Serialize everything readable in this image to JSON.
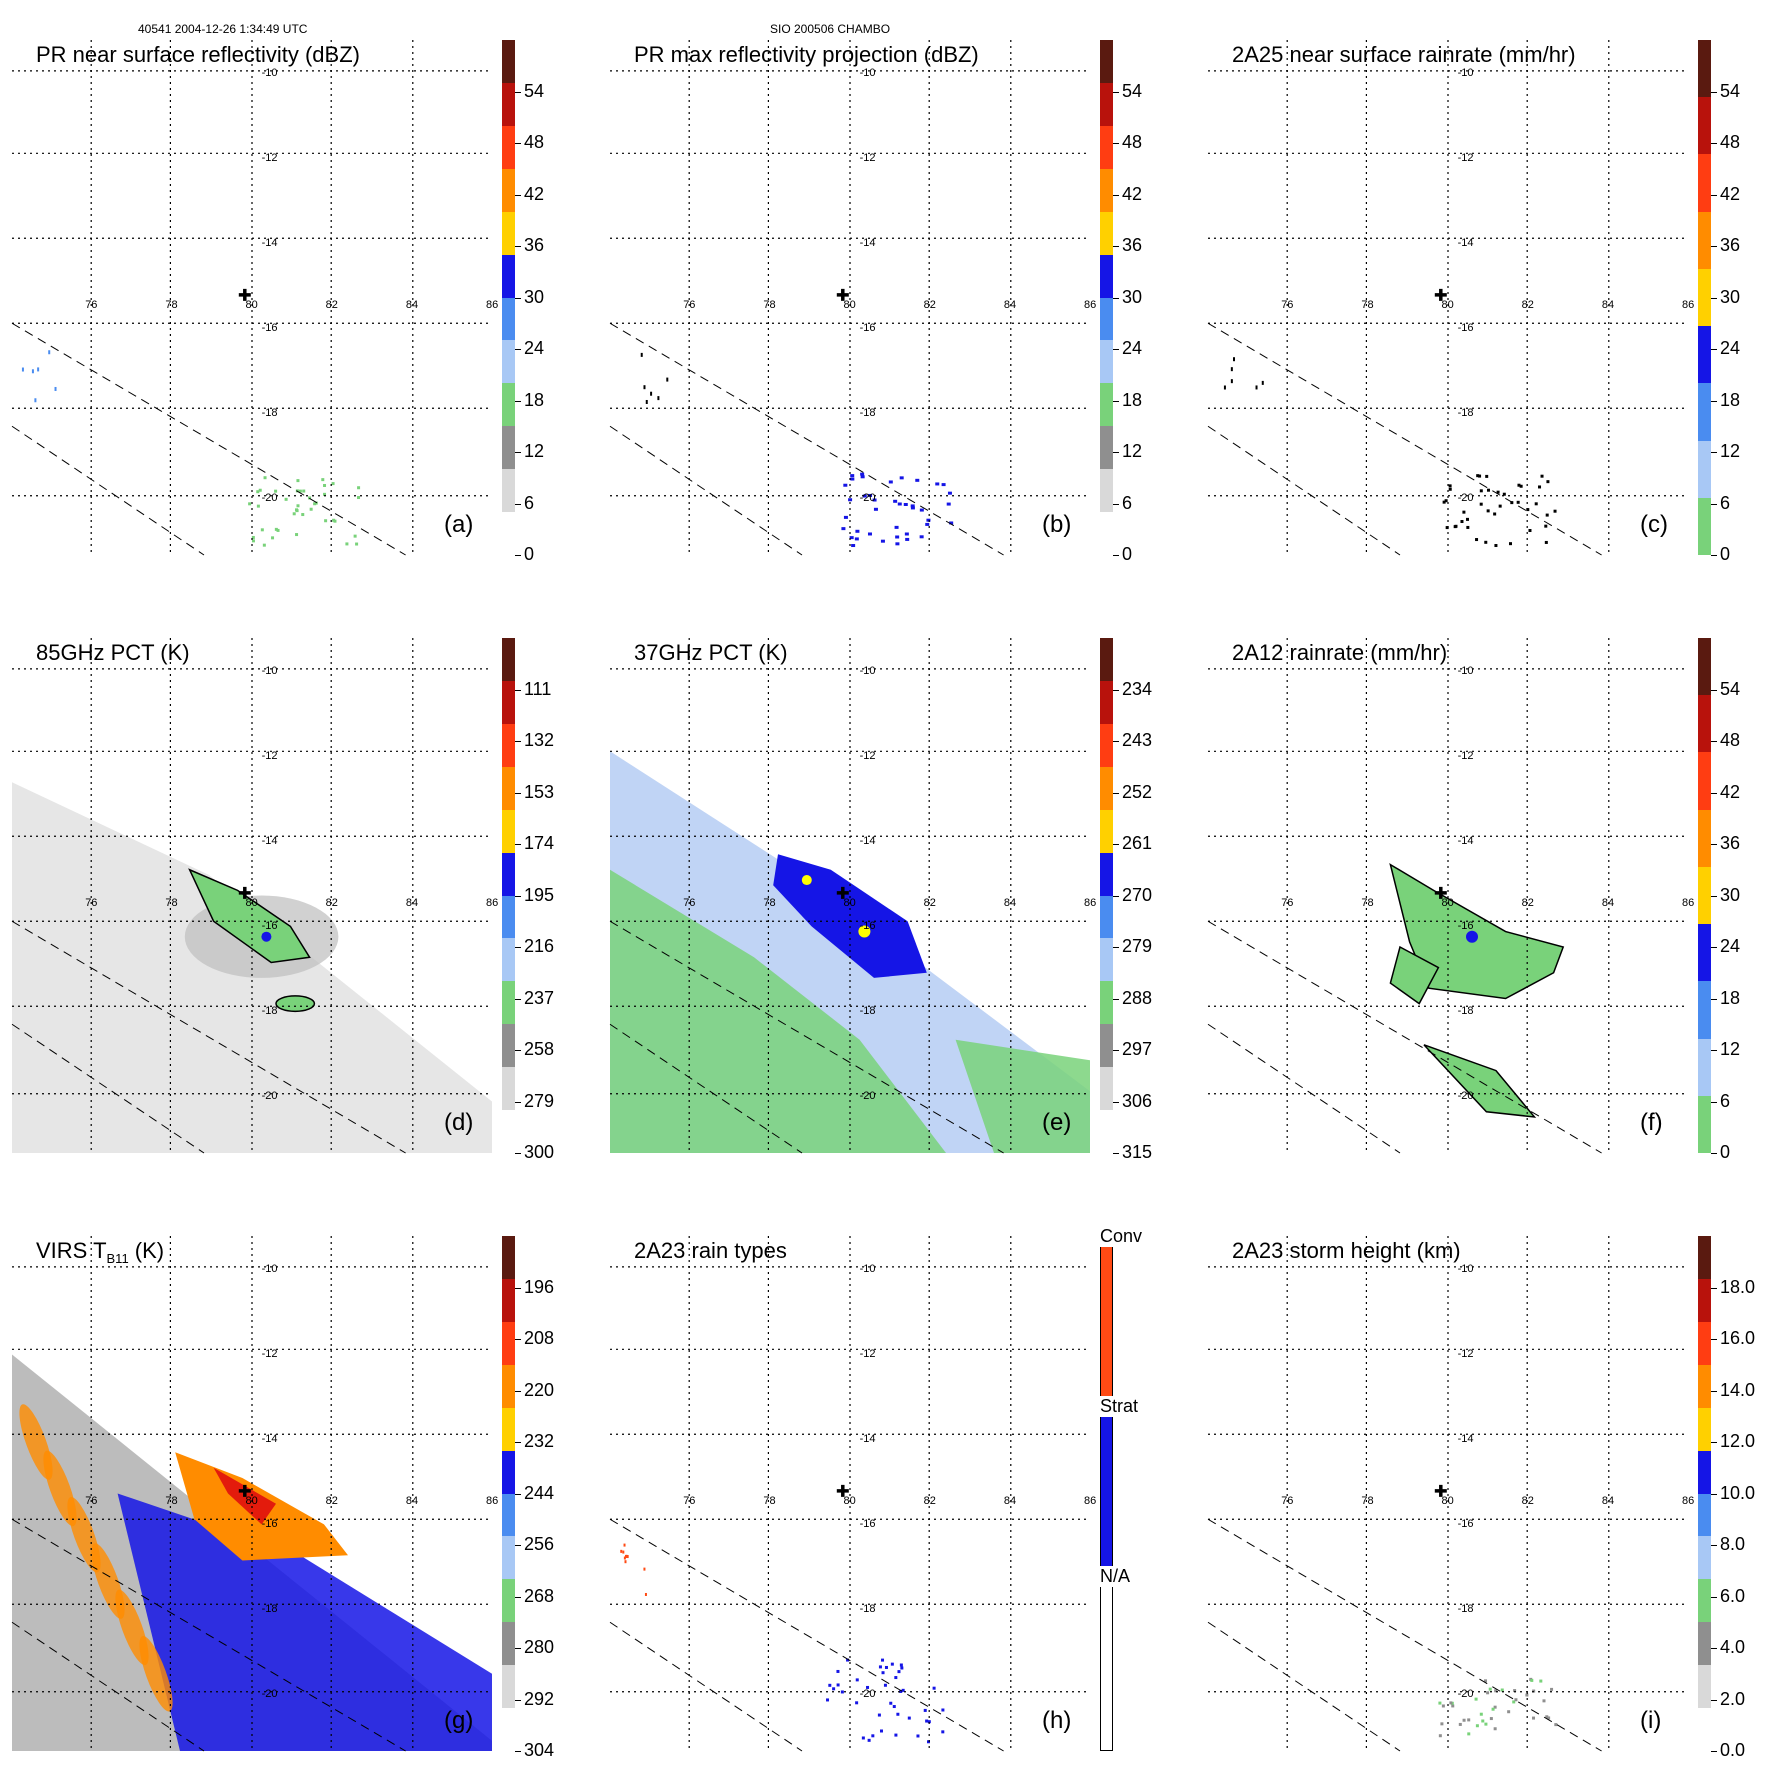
{
  "header": {
    "left": "40541 2004-12-26 1:34:49 UTC",
    "center": "SIO 200506 CHAMBO"
  },
  "colors": {
    "green": "#79d27a",
    "blue": "#1515e6",
    "lightblue": "#bcd2f5",
    "yellow": "#ffff00",
    "orange": "#ff8c00",
    "red": "#e31b0c",
    "gray": "#b7b7b7",
    "rain_conv": "#ff4a14",
    "rain_strat": "#1515e6"
  },
  "grid": {
    "lon_labels": [
      "76",
      "78",
      "80",
      "82",
      "84",
      "86"
    ],
    "lat_labels": [
      "-10",
      "-12",
      "-14",
      "-16",
      "-18",
      "-20"
    ]
  },
  "panels": [
    {
      "id": "a",
      "title": "PR near surface reflectivity (dBZ)",
      "label": "(a)",
      "ticks": [
        "54",
        "48",
        "42",
        "36",
        "30",
        "24",
        "18",
        "12",
        "6",
        "0"
      ],
      "scheme": "std"
    },
    {
      "id": "b",
      "title": "PR max reflectivity projection (dBZ)",
      "label": "(b)",
      "ticks": [
        "54",
        "48",
        "42",
        "36",
        "30",
        "24",
        "18",
        "12",
        "6",
        "0"
      ],
      "scheme": "std"
    },
    {
      "id": "c",
      "title": "2A25 near surface rainrate (mm/hr)",
      "label": "(c)",
      "ticks": [
        "54",
        "48",
        "42",
        "36",
        "30",
        "24",
        "18",
        "12",
        "6",
        "0"
      ],
      "scheme": "rain"
    },
    {
      "id": "d",
      "title": "85GHz PCT (K)",
      "label": "(d)",
      "ticks": [
        "111",
        "132",
        "153",
        "174",
        "195",
        "216",
        "237",
        "258",
        "279",
        "300"
      ],
      "scheme": "std"
    },
    {
      "id": "e",
      "title": "37GHz PCT (K)",
      "label": "(e)",
      "ticks": [
        "234",
        "243",
        "252",
        "261",
        "270",
        "279",
        "288",
        "297",
        "306",
        "315"
      ],
      "scheme": "std"
    },
    {
      "id": "f",
      "title": "2A12 rainrate (mm/hr)",
      "label": "(f)",
      "ticks": [
        "54",
        "48",
        "42",
        "36",
        "30",
        "24",
        "18",
        "12",
        "6",
        "0"
      ],
      "scheme": "rain"
    },
    {
      "id": "g",
      "title_main": "VIRS T",
      "title_sub": "B11",
      "title_end": " (K)",
      "label": "(g)",
      "ticks": [
        "196",
        "208",
        "220",
        "232",
        "244",
        "256",
        "268",
        "280",
        "292",
        "304"
      ],
      "scheme": "std"
    },
    {
      "id": "h",
      "title": "2A23 rain types",
      "label": "(h)",
      "ticks": [
        "Conv",
        "Strat",
        "N/A"
      ],
      "scheme": "types"
    },
    {
      "id": "i",
      "title": "2A23 storm height (km)",
      "label": "(i)",
      "ticks": [
        "18.0",
        "16.0",
        "14.0",
        "12.0",
        "10.0",
        "8.0",
        "6.0",
        "4.0",
        "2.0",
        "0.0"
      ],
      "scheme": "std"
    }
  ]
}
